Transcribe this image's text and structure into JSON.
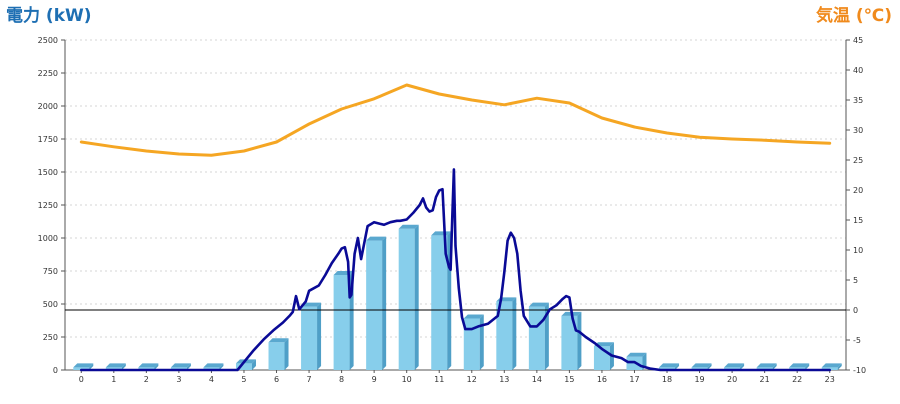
{
  "chart_data": {
    "type": "bar",
    "x": {
      "label": "",
      "categories": [
        "0",
        "1",
        "2",
        "3",
        "4",
        "5",
        "6",
        "7",
        "8",
        "9",
        "10",
        "11",
        "12",
        "13",
        "14",
        "15",
        "16",
        "17",
        "18",
        "19",
        "20",
        "21",
        "22",
        "23"
      ]
    },
    "y_left": {
      "label": "電力 (kW)",
      "range": [
        0,
        2500
      ],
      "ticks": [
        0,
        250,
        500,
        750,
        1000,
        1250,
        1500,
        1750,
        2000,
        2250,
        2500
      ]
    },
    "y_right": {
      "label": "気温 (℃)",
      "range": [
        -10,
        45
      ],
      "ticks": [
        -10,
        -5,
        0,
        5,
        10,
        15,
        20,
        25,
        30,
        35,
        40,
        45
      ]
    },
    "grid": true,
    "reference_line": {
      "axis": "y_right",
      "value": 0
    },
    "series": [
      {
        "type": "bar",
        "axis": "y_left",
        "values": [
          20,
          20,
          20,
          20,
          20,
          50,
          210,
          480,
          720,
          980,
          1070,
          1020,
          390,
          520,
          480,
          410,
          180,
          100,
          20,
          20,
          20,
          20,
          20,
          20
        ],
        "color": "#87ceeb"
      },
      {
        "type": "line",
        "axis": "y_left",
        "x": [
          0,
          1,
          2,
          3,
          4,
          4.8,
          5.3,
          5.6,
          5.9,
          6.2,
          6.4,
          6.5,
          6.6,
          6.7,
          6.9,
          7.0,
          7.3,
          7.5,
          7.7,
          7.9,
          8.0,
          8.1,
          8.2,
          8.25,
          8.3,
          8.4,
          8.5,
          8.6,
          8.8,
          9.0,
          9.3,
          9.5,
          9.7,
          9.8,
          10.0,
          10.2,
          10.3,
          10.4,
          10.5,
          10.6,
          10.7,
          10.8,
          10.9,
          11.0,
          11.1,
          11.2,
          11.3,
          11.35,
          11.4,
          11.45,
          11.5,
          11.6,
          11.7,
          11.8,
          12.0,
          12.2,
          12.5,
          12.8,
          12.9,
          13.0,
          13.1,
          13.2,
          13.3,
          13.4,
          13.5,
          13.6,
          13.8,
          14.0,
          14.2,
          14.4,
          14.6,
          14.8,
          14.9,
          15.0,
          15.1,
          15.2,
          15.3,
          15.5,
          15.8,
          16.0,
          16.3,
          16.6,
          16.8,
          17.0,
          17.2,
          17.5,
          17.8,
          18,
          19,
          20,
          21,
          22,
          23
        ],
        "values": [
          0,
          0,
          0,
          0,
          0,
          0,
          150,
          230,
          300,
          360,
          410,
          440,
          560,
          460,
          520,
          600,
          640,
          720,
          810,
          880,
          920,
          930,
          820,
          550,
          570,
          880,
          1000,
          840,
          1090,
          1120,
          1100,
          1120,
          1130,
          1130,
          1140,
          1190,
          1220,
          1250,
          1300,
          1230,
          1200,
          1210,
          1310,
          1360,
          1370,
          880,
          780,
          760,
          1140,
          1520,
          940,
          620,
          400,
          310,
          310,
          330,
          350,
          410,
          540,
          740,
          980,
          1040,
          1000,
          880,
          600,
          410,
          330,
          330,
          380,
          460,
          490,
          540,
          560,
          550,
          390,
          300,
          290,
          250,
          200,
          160,
          110,
          90,
          60,
          60,
          30,
          10,
          0,
          0,
          0,
          0,
          0,
          0,
          0
        ],
        "color": "#0a0a96"
      },
      {
        "type": "line",
        "axis": "y_right",
        "values": [
          28,
          27.2,
          26.5,
          26,
          25.8,
          26.5,
          28,
          31,
          33.5,
          35.2,
          37.5,
          36,
          35,
          34.2,
          35.3,
          34.5,
          32,
          30.5,
          29.5,
          28.8,
          28.5,
          28.3,
          28,
          27.8
        ],
        "color": "#f5a623"
      }
    ]
  }
}
